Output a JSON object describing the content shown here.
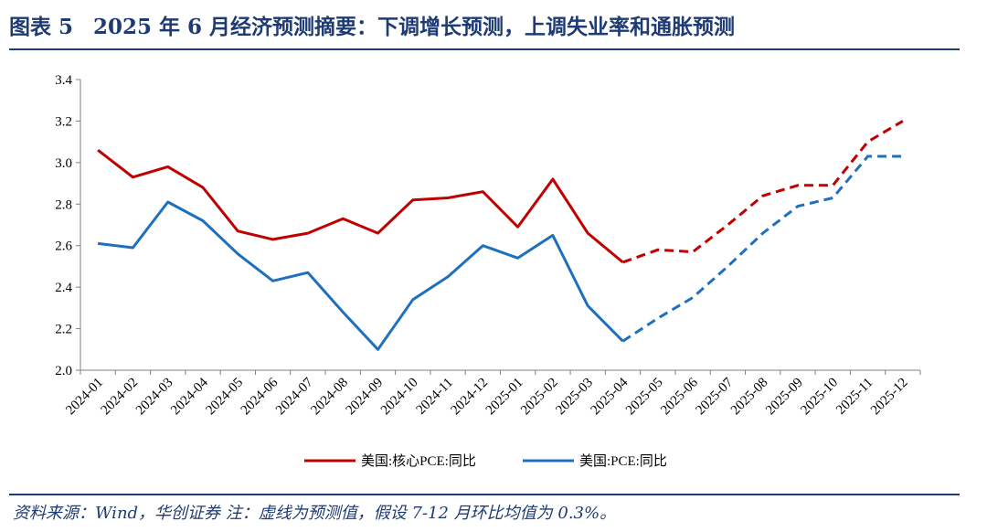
{
  "header": {
    "label": "图表 5",
    "title": "2025 年 6 月经济预测摘要：下调增长预测，上调失业率和通胀预测"
  },
  "footer": {
    "source": "资料来源：Wind，华创证券  注：虚线为预测值，假设 7-12 月环比均值为 0.3%。"
  },
  "chart_data": {
    "type": "line",
    "title": "",
    "xlabel": "",
    "ylabel": "",
    "ylim": [
      2.0,
      3.4
    ],
    "yticks": [
      "2.0",
      "2.2",
      "2.4",
      "2.6",
      "2.8",
      "3.0",
      "3.2",
      "3.4"
    ],
    "categories": [
      "2024-01",
      "2024-02",
      "2024-03",
      "2024-04",
      "2024-05",
      "2024-06",
      "2024-07",
      "2024-08",
      "2024-09",
      "2024-10",
      "2024-11",
      "2024-12",
      "2025-01",
      "2025-02",
      "2025-03",
      "2025-04",
      "2025-05",
      "2025-06",
      "2025-07",
      "2025-08",
      "2025-09",
      "2025-10",
      "2025-11",
      "2025-12"
    ],
    "forecast_start_index": 15,
    "grid": false,
    "legend_position": "bottom",
    "series": [
      {
        "name": "美国:核心PCE:同比",
        "color": "#c00000",
        "values": [
          3.06,
          2.93,
          2.98,
          2.88,
          2.67,
          2.63,
          2.66,
          2.73,
          2.66,
          2.82,
          2.83,
          2.86,
          2.69,
          2.92,
          2.66,
          2.52,
          2.58,
          2.57,
          2.7,
          2.84,
          2.89,
          2.89,
          3.1,
          3.2
        ]
      },
      {
        "name": "美国:PCE:同比",
        "color": "#1f6fbf",
        "values": [
          2.61,
          2.59,
          2.81,
          2.72,
          2.56,
          2.43,
          2.47,
          2.28,
          2.1,
          2.34,
          2.45,
          2.6,
          2.54,
          2.65,
          2.31,
          2.14,
          2.25,
          2.35,
          2.5,
          2.66,
          2.79,
          2.83,
          3.03,
          3.03
        ]
      }
    ]
  }
}
